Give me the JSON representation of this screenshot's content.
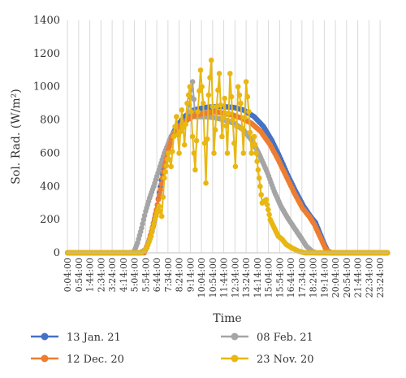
{
  "chart_data": {
    "type": "line",
    "ylabel": "Sol. Rad. (W/m²)",
    "xlabel": "Time",
    "ylim": [
      0,
      1400
    ],
    "yticks": [
      0,
      200,
      400,
      600,
      800,
      1000,
      1200,
      1400
    ],
    "xticks": [
      "0:04:00",
      "0:54:00",
      "1:44:00",
      "2:34:00",
      "3:24:00",
      "4:14:00",
      "5:04:00",
      "5:54:00",
      "6:44:00",
      "7:34:00",
      "8:24:00",
      "9:14:00",
      "10:04:00",
      "10:54:00",
      "11:44:00",
      "12:34:00",
      "13:24:00",
      "14:14:00",
      "15:04:00",
      "15:54:00",
      "16:44:00",
      "17:34:00",
      "18:24:00",
      "19:14:00",
      "20:04:00",
      "20:54:00",
      "21:44:00",
      "22:34:00",
      "23:24:00"
    ],
    "x_unit": "hours",
    "grid": "vertical",
    "legend_position": "bottom",
    "series": [
      {
        "name": "13 Jan. 21",
        "color": "#4472C4",
        "points": [
          [
            0.07,
            0
          ],
          [
            5.5,
            0
          ],
          [
            5.9,
            20
          ],
          [
            6.3,
            100
          ],
          [
            6.7,
            250
          ],
          [
            7.0,
            400
          ],
          [
            7.3,
            550
          ],
          [
            7.7,
            680
          ],
          [
            8.2,
            760
          ],
          [
            8.8,
            820
          ],
          [
            9.5,
            860
          ],
          [
            10.3,
            875
          ],
          [
            11.0,
            880
          ],
          [
            11.8,
            880
          ],
          [
            12.5,
            875
          ],
          [
            13.2,
            860
          ],
          [
            14.0,
            820
          ],
          [
            14.7,
            760
          ],
          [
            15.3,
            680
          ],
          [
            15.9,
            580
          ],
          [
            16.5,
            470
          ],
          [
            17.1,
            370
          ],
          [
            17.7,
            280
          ],
          [
            18.2,
            220
          ],
          [
            18.6,
            180
          ],
          [
            18.9,
            120
          ],
          [
            19.2,
            60
          ],
          [
            19.5,
            10
          ],
          [
            19.8,
            0
          ],
          [
            23.95,
            0
          ]
        ]
      },
      {
        "name": "08 Feb. 21",
        "color": "#A5A5A5",
        "points": [
          [
            0.07,
            0
          ],
          [
            5.0,
            0
          ],
          [
            5.3,
            60
          ],
          [
            5.6,
            150
          ],
          [
            5.9,
            250
          ],
          [
            6.2,
            330
          ],
          [
            6.5,
            400
          ],
          [
            6.9,
            500
          ],
          [
            7.3,
            600
          ],
          [
            7.8,
            700
          ],
          [
            8.4,
            760
          ],
          [
            9.0,
            800
          ],
          [
            9.4,
            1030
          ],
          [
            9.6,
            820
          ],
          [
            10.3,
            820
          ],
          [
            11.0,
            815
          ],
          [
            11.8,
            800
          ],
          [
            12.5,
            780
          ],
          [
            13.2,
            740
          ],
          [
            13.8,
            680
          ],
          [
            14.4,
            590
          ],
          [
            15.0,
            480
          ],
          [
            15.5,
            370
          ],
          [
            16.0,
            280
          ],
          [
            16.5,
            210
          ],
          [
            17.0,
            150
          ],
          [
            17.5,
            90
          ],
          [
            17.9,
            40
          ],
          [
            18.3,
            10
          ],
          [
            18.6,
            0
          ],
          [
            23.95,
            0
          ]
        ]
      },
      {
        "name": "12 Dec. 20",
        "color": "#ED7D31",
        "points": [
          [
            0.07,
            0
          ],
          [
            5.8,
            0
          ],
          [
            6.1,
            60
          ],
          [
            6.4,
            150
          ],
          [
            6.7,
            260
          ],
          [
            7.0,
            380
          ],
          [
            7.3,
            520
          ],
          [
            7.6,
            620
          ],
          [
            7.9,
            700
          ],
          [
            8.4,
            760
          ],
          [
            9.0,
            800
          ],
          [
            9.6,
            830
          ],
          [
            10.3,
            840
          ],
          [
            11.0,
            850
          ],
          [
            11.7,
            840
          ],
          [
            12.4,
            830
          ],
          [
            13.1,
            810
          ],
          [
            13.8,
            780
          ],
          [
            14.5,
            730
          ],
          [
            15.2,
            650
          ],
          [
            15.8,
            560
          ],
          [
            16.4,
            460
          ],
          [
            17.0,
            360
          ],
          [
            17.6,
            270
          ],
          [
            18.1,
            220
          ],
          [
            18.5,
            170
          ],
          [
            18.9,
            100
          ],
          [
            19.3,
            30
          ],
          [
            19.6,
            0
          ],
          [
            23.95,
            0
          ]
        ]
      },
      {
        "name": "23 Nov. 20",
        "color": "#E8B713",
        "points": [
          [
            0.07,
            0
          ],
          [
            5.6,
            0
          ],
          [
            6.0,
            30
          ],
          [
            6.3,
            100
          ],
          [
            6.6,
            200
          ],
          [
            6.9,
            280
          ],
          [
            7.1,
            220
          ],
          [
            7.3,
            450
          ],
          [
            7.6,
            600
          ],
          [
            7.8,
            520
          ],
          [
            8.0,
            700
          ],
          [
            8.2,
            820
          ],
          [
            8.4,
            600
          ],
          [
            8.6,
            860
          ],
          [
            8.8,
            650
          ],
          [
            9.0,
            900
          ],
          [
            9.2,
            1000
          ],
          [
            9.4,
            700
          ],
          [
            9.6,
            500
          ],
          [
            9.8,
            850
          ],
          [
            10.0,
            1100
          ],
          [
            10.2,
            900
          ],
          [
            10.4,
            420
          ],
          [
            10.6,
            950
          ],
          [
            10.8,
            1160
          ],
          [
            11.0,
            600
          ],
          [
            11.2,
            880
          ],
          [
            11.4,
            1080
          ],
          [
            11.6,
            700
          ],
          [
            11.8,
            930
          ],
          [
            12.0,
            600
          ],
          [
            12.2,
            1080
          ],
          [
            12.4,
            800
          ],
          [
            12.6,
            520
          ],
          [
            12.8,
            1000
          ],
          [
            13.0,
            900
          ],
          [
            13.2,
            600
          ],
          [
            13.4,
            1030
          ],
          [
            13.6,
            850
          ],
          [
            13.8,
            600
          ],
          [
            14.0,
            700
          ],
          [
            14.3,
            500
          ],
          [
            14.6,
            300
          ],
          [
            14.9,
            320
          ],
          [
            15.2,
            200
          ],
          [
            15.5,
            150
          ],
          [
            15.8,
            100
          ],
          [
            16.1,
            80
          ],
          [
            16.4,
            50
          ],
          [
            16.8,
            30
          ],
          [
            17.3,
            10
          ],
          [
            17.8,
            0
          ],
          [
            23.95,
            0
          ]
        ]
      }
    ]
  }
}
